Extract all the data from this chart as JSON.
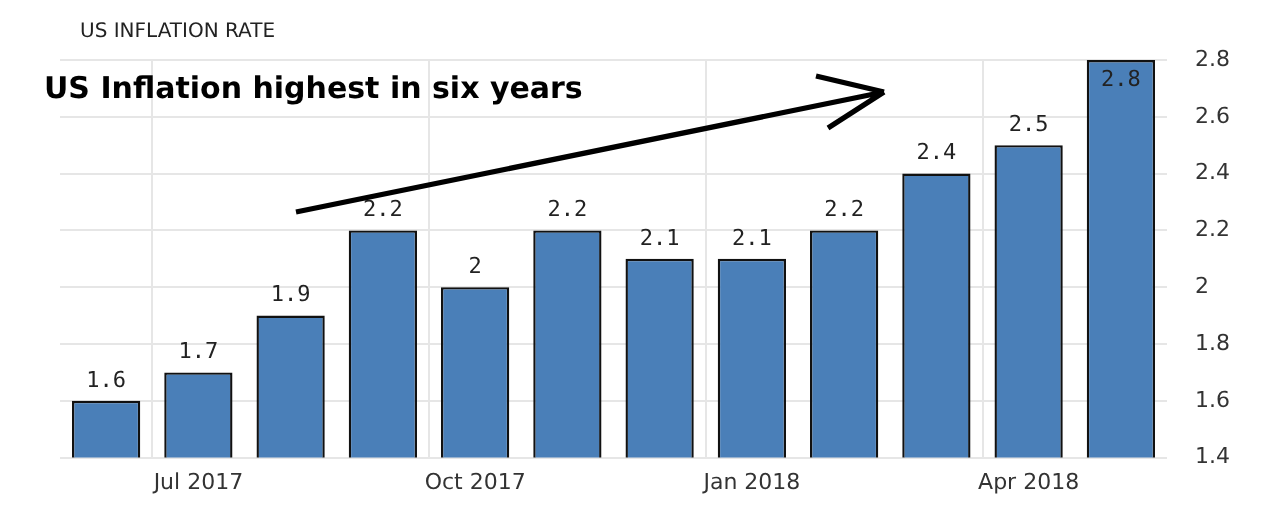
{
  "chart_data": {
    "type": "bar",
    "title": "US INFLATION RATE",
    "annotations": [
      "US Inflation highest in six years"
    ],
    "categories": [
      null,
      "Jul 2017",
      null,
      null,
      "Oct 2017",
      null,
      null,
      "Jan 2018",
      null,
      null,
      "Apr 2018",
      null
    ],
    "values": [
      1.6,
      1.7,
      1.9,
      2.2,
      2,
      2.2,
      2.1,
      2.1,
      2.2,
      2.4,
      2.5,
      2.8
    ],
    "color": "#4a7fb8",
    "ylim": [
      1.4,
      2.8
    ],
    "yticks": [
      1.4,
      1.6,
      1.8,
      2,
      2.2,
      2.4,
      2.6,
      2.8
    ],
    "grid": true,
    "data_labels": true
  }
}
